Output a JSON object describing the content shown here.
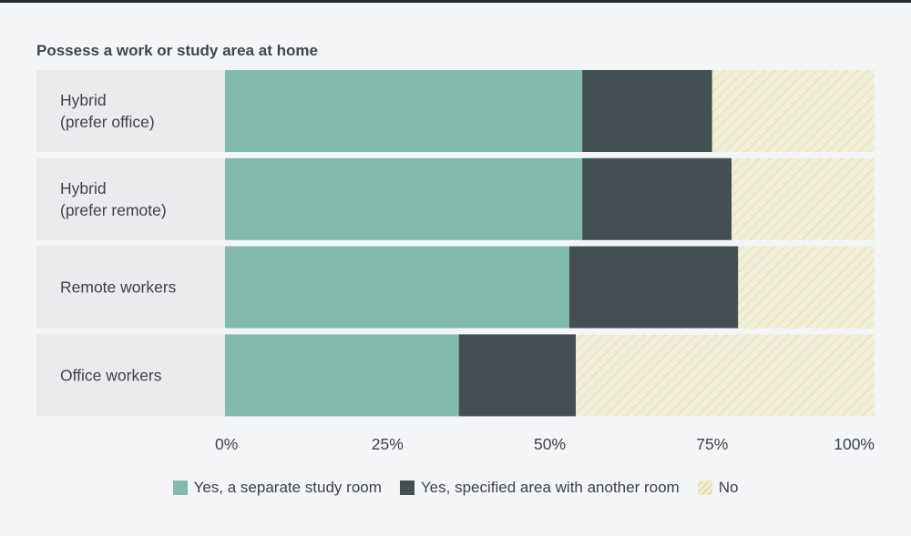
{
  "chart_data": {
    "type": "bar",
    "orientation": "horizontal",
    "stacked": true,
    "title": "Possess a work or study area at home",
    "categories": [
      "Hybrid\n(prefer office)",
      "Hybrid\n(prefer remote)",
      "Remote workers",
      "Office workers"
    ],
    "series": [
      {
        "name": "Yes, a separate study room",
        "color": "#82bbad",
        "values": [
          55,
          55,
          53,
          36
        ]
      },
      {
        "name": "Yes, specified area with another room",
        "color": "#444f53",
        "values": [
          20,
          23,
          26,
          18
        ]
      },
      {
        "name": "No",
        "color": "#f2efd8",
        "values": [
          25,
          22,
          21,
          46
        ]
      }
    ],
    "xlim": [
      0,
      100
    ],
    "xticks": [
      "0%",
      "25%",
      "50%",
      "75%",
      "100%"
    ],
    "legend_position": "bottom-center",
    "grid": false
  }
}
